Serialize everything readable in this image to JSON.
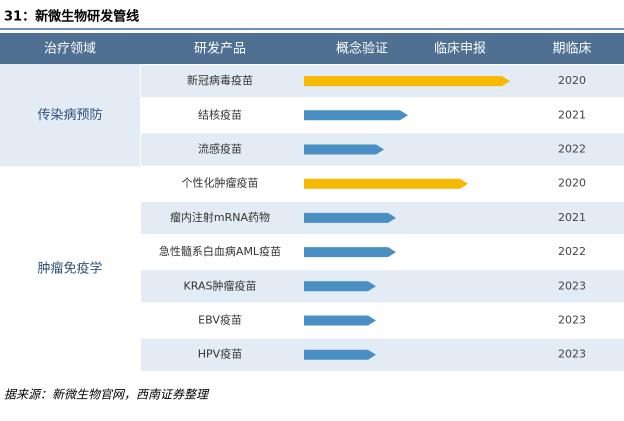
{
  "title": "31：新微生物研发管线",
  "header": [
    "治疗领域",
    "研发产品",
    "概念验证",
    "临床申报",
    "期临床"
  ],
  "groups": [
    {
      "name": "传染病预防",
      "products": [
        {
          "name": "新冠病毒疫苗",
          "year": "2020"
        },
        {
          "name": "结核疫苗",
          "year": "2021"
        },
        {
          "name": "流感疫苗",
          "year": "2022"
        }
      ]
    },
    {
      "name": "肿瘤免疫学",
      "products": [
        {
          "name": "个性化肿瘤疫苗",
          "year": "2020"
        },
        {
          "name": "瘤内注射mRNA药物",
          "year": "2021"
        },
        {
          "name": "急性髓系白血病AML疫苗",
          "year": "2022"
        },
        {
          "name": "KRAS肿瘤疫苗",
          "year": "2023"
        },
        {
          "name": "EBV疫苗",
          "year": "2023"
        },
        {
          "name": "HPV疫苗",
          "year": "2023"
        }
      ]
    }
  ],
  "source": "据来源：新微生物官网，西南证券整理"
}
